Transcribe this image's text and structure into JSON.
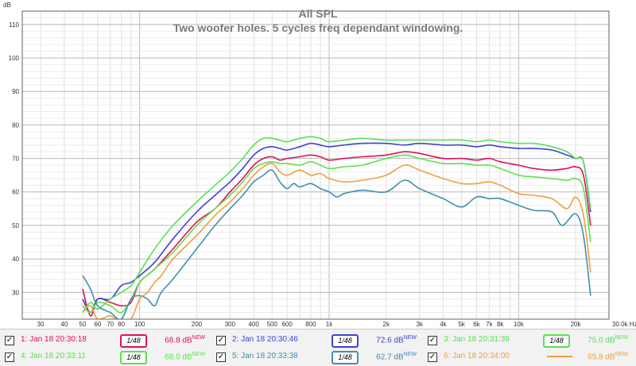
{
  "chart_data": {
    "type": "line",
    "title": "All SPL",
    "subtitle": "Two woofer holes. 5 cycles freq dependant windowing.",
    "ylabel": "dB",
    "xunit": "Hz",
    "xscale": "log",
    "xlim": [
      24,
      30000
    ],
    "ylim": [
      22,
      114
    ],
    "grid": true,
    "xticks": [
      30,
      40,
      50,
      60,
      70,
      80,
      100,
      200,
      300,
      400,
      500,
      600,
      800,
      1000,
      2000,
      3000,
      4000,
      5000,
      6000,
      7000,
      8000,
      10000,
      20000,
      30000
    ],
    "xtick_labels": [
      "30",
      "40",
      "50",
      "60",
      "70",
      "80",
      "100",
      "200",
      "300",
      "400",
      "500",
      "600",
      "800",
      "1k",
      "2k",
      "3k",
      "4k",
      "5k",
      "6k",
      "7k",
      "8k",
      "10k",
      "20k",
      "30.0k Hz"
    ],
    "yticks": [
      30,
      40,
      50,
      60,
      70,
      80,
      90,
      100,
      110
    ],
    "ytick_labels": [
      "30",
      "40",
      "50",
      "60",
      "70",
      "80",
      "90",
      "100",
      "110"
    ],
    "series": [
      {
        "name": "1: Jan 18 20:30:18",
        "color": "#e0105a",
        "x": [
          50,
          55,
          60,
          70,
          80,
          90,
          100,
          120,
          150,
          200,
          250,
          300,
          350,
          400,
          450,
          500,
          550,
          600,
          700,
          800,
          900,
          1000,
          1200,
          1500,
          2000,
          2500,
          3000,
          4000,
          5000,
          6000,
          7000,
          8000,
          10000,
          12000,
          15000,
          18000,
          20000,
          22000,
          24000
        ],
        "y": [
          31,
          23,
          28,
          27,
          26,
          27,
          33,
          37,
          43,
          51,
          55,
          60,
          64,
          68,
          70,
          70.5,
          69.5,
          70,
          70.5,
          71,
          70.5,
          69.5,
          70,
          70.5,
          71,
          72,
          71.5,
          70,
          70,
          69.5,
          70,
          69,
          68,
          67,
          66.5,
          67,
          67.5,
          65,
          50
        ]
      },
      {
        "name": "2: Jan 18 20:30:46",
        "color": "#4040d8",
        "x": [
          50,
          55,
          60,
          70,
          80,
          90,
          100,
          120,
          150,
          200,
          250,
          300,
          350,
          400,
          450,
          500,
          550,
          600,
          700,
          800,
          900,
          1000,
          1200,
          1500,
          2000,
          2500,
          3000,
          4000,
          5000,
          6000,
          7000,
          8000,
          10000,
          12000,
          15000,
          18000,
          20000,
          22000,
          24000
        ],
        "y": [
          28,
          24,
          28,
          28,
          32,
          33,
          35,
          39,
          46,
          54,
          59,
          63,
          67,
          71,
          73,
          73.5,
          73,
          72.5,
          73.5,
          74.5,
          74,
          73.5,
          74,
          74.5,
          74.5,
          74,
          74.5,
          74,
          74,
          73.5,
          74,
          73.5,
          73,
          73,
          72.5,
          71,
          70,
          69,
          54
        ]
      },
      {
        "name": "3: Jan 18 20:31:39",
        "color": "#58e058",
        "x": [
          50,
          55,
          60,
          70,
          80,
          90,
          100,
          120,
          150,
          200,
          250,
          300,
          350,
          400,
          450,
          500,
          550,
          600,
          700,
          800,
          900,
          1000,
          1200,
          1500,
          2000,
          2500,
          3000,
          4000,
          5000,
          6000,
          7000,
          8000,
          10000,
          12000,
          15000,
          18000,
          20000,
          22000,
          24000
        ],
        "y": [
          24,
          27,
          25,
          28,
          30,
          32,
          36,
          43,
          50,
          57,
          62,
          66,
          70,
          74,
          76,
          76,
          75.5,
          75,
          76,
          76.5,
          76,
          75,
          75.5,
          76,
          75.5,
          75.5,
          75.5,
          75.5,
          75.5,
          75,
          75.5,
          75,
          74.5,
          74.5,
          73.5,
          72,
          70,
          69,
          55
        ]
      },
      {
        "name": "4: Jan 18 20:33:11",
        "color": "#60e050",
        "x": [
          50,
          55,
          60,
          70,
          80,
          90,
          100,
          120,
          150,
          200,
          250,
          300,
          350,
          400,
          450,
          500,
          550,
          600,
          700,
          800,
          900,
          1000,
          1200,
          1500,
          2000,
          2500,
          3000,
          4000,
          5000,
          6000,
          7000,
          8000,
          10000,
          12000,
          15000,
          18000,
          20000,
          22000,
          24000
        ],
        "y": [
          26,
          24,
          27,
          26,
          24,
          28,
          33,
          37,
          42,
          50,
          55,
          59,
          63,
          67,
          68.5,
          69,
          68.5,
          68.5,
          68,
          69,
          68,
          67,
          67.5,
          68,
          70,
          71,
          70,
          68.5,
          68.5,
          68,
          68,
          67,
          65,
          64.5,
          64,
          63.5,
          64,
          61,
          45
        ]
      },
      {
        "name": "5: Jan 18 20:33:38",
        "color": "#4090b0",
        "x": [
          50,
          55,
          60,
          70,
          80,
          90,
          100,
          110,
          120,
          130,
          150,
          200,
          250,
          300,
          350,
          400,
          450,
          500,
          550,
          600,
          650,
          700,
          800,
          900,
          1000,
          1100,
          1200,
          1500,
          2000,
          2500,
          3000,
          4000,
          5000,
          6000,
          7000,
          8000,
          10000,
          12000,
          15000,
          17000,
          20000,
          22000,
          24000
        ],
        "y": [
          35,
          31,
          26,
          24,
          22,
          28,
          29,
          28,
          26,
          30,
          34,
          43,
          50,
          55,
          59,
          63,
          65,
          66.5,
          63,
          61,
          62.5,
          61.5,
          62.5,
          61,
          60,
          58.5,
          59.5,
          60.5,
          60,
          63.5,
          61,
          58,
          55.5,
          58.5,
          58,
          58,
          56,
          54.5,
          54,
          50,
          53.5,
          47,
          29
        ]
      },
      {
        "name": "6: Jan 18 20:34:00",
        "color": "#f0a040",
        "x": [
          50,
          55,
          60,
          70,
          80,
          90,
          100,
          110,
          120,
          130,
          150,
          200,
          250,
          300,
          350,
          400,
          450,
          500,
          550,
          600,
          700,
          800,
          900,
          1000,
          1200,
          1500,
          2000,
          2500,
          3000,
          4000,
          5000,
          6000,
          7000,
          8000,
          10000,
          12000,
          15000,
          18000,
          20000,
          22000,
          24000
        ],
        "y": [
          24,
          26,
          22,
          23,
          21,
          22,
          28,
          30,
          33,
          35,
          40,
          47,
          53,
          57,
          61,
          65,
          67.5,
          68.5,
          66,
          65,
          66.5,
          65,
          65.5,
          64,
          63,
          63.5,
          65,
          68,
          66.5,
          64,
          62.5,
          62.5,
          63,
          62,
          59.5,
          59,
          58,
          55,
          58.5,
          53,
          36
        ]
      }
    ]
  },
  "legend": {
    "items": [
      {
        "label": "1: Jan 18 20:30:18",
        "smoothing": "1/48",
        "level": "68.8 dB",
        "new": "NEW",
        "checked": "✓"
      },
      {
        "label": "2: Jan 18 20:30:46",
        "smoothing": "1/48",
        "level": "72.6 dB",
        "new": "NEW",
        "checked": "✓"
      },
      {
        "label": "3: Jan 18 20:31:39",
        "smoothing": "1/48",
        "level": "75.0 dB",
        "new": "NEW",
        "checked": "✓"
      },
      {
        "label": "4: Jan 18 20:33:11",
        "smoothing": "1/48",
        "level": "68.0 dB",
        "new": "NEW",
        "checked": "✓"
      },
      {
        "label": "5: Jan 18 20:33:38",
        "smoothing": "1/48",
        "level": "62.7 dB",
        "new": "NEW",
        "checked": "✓"
      },
      {
        "label": "6: Jan 18 20:34:00",
        "smoothing": "",
        "level": "65.8 dB",
        "new": "NEW",
        "checked": "✓"
      }
    ]
  }
}
